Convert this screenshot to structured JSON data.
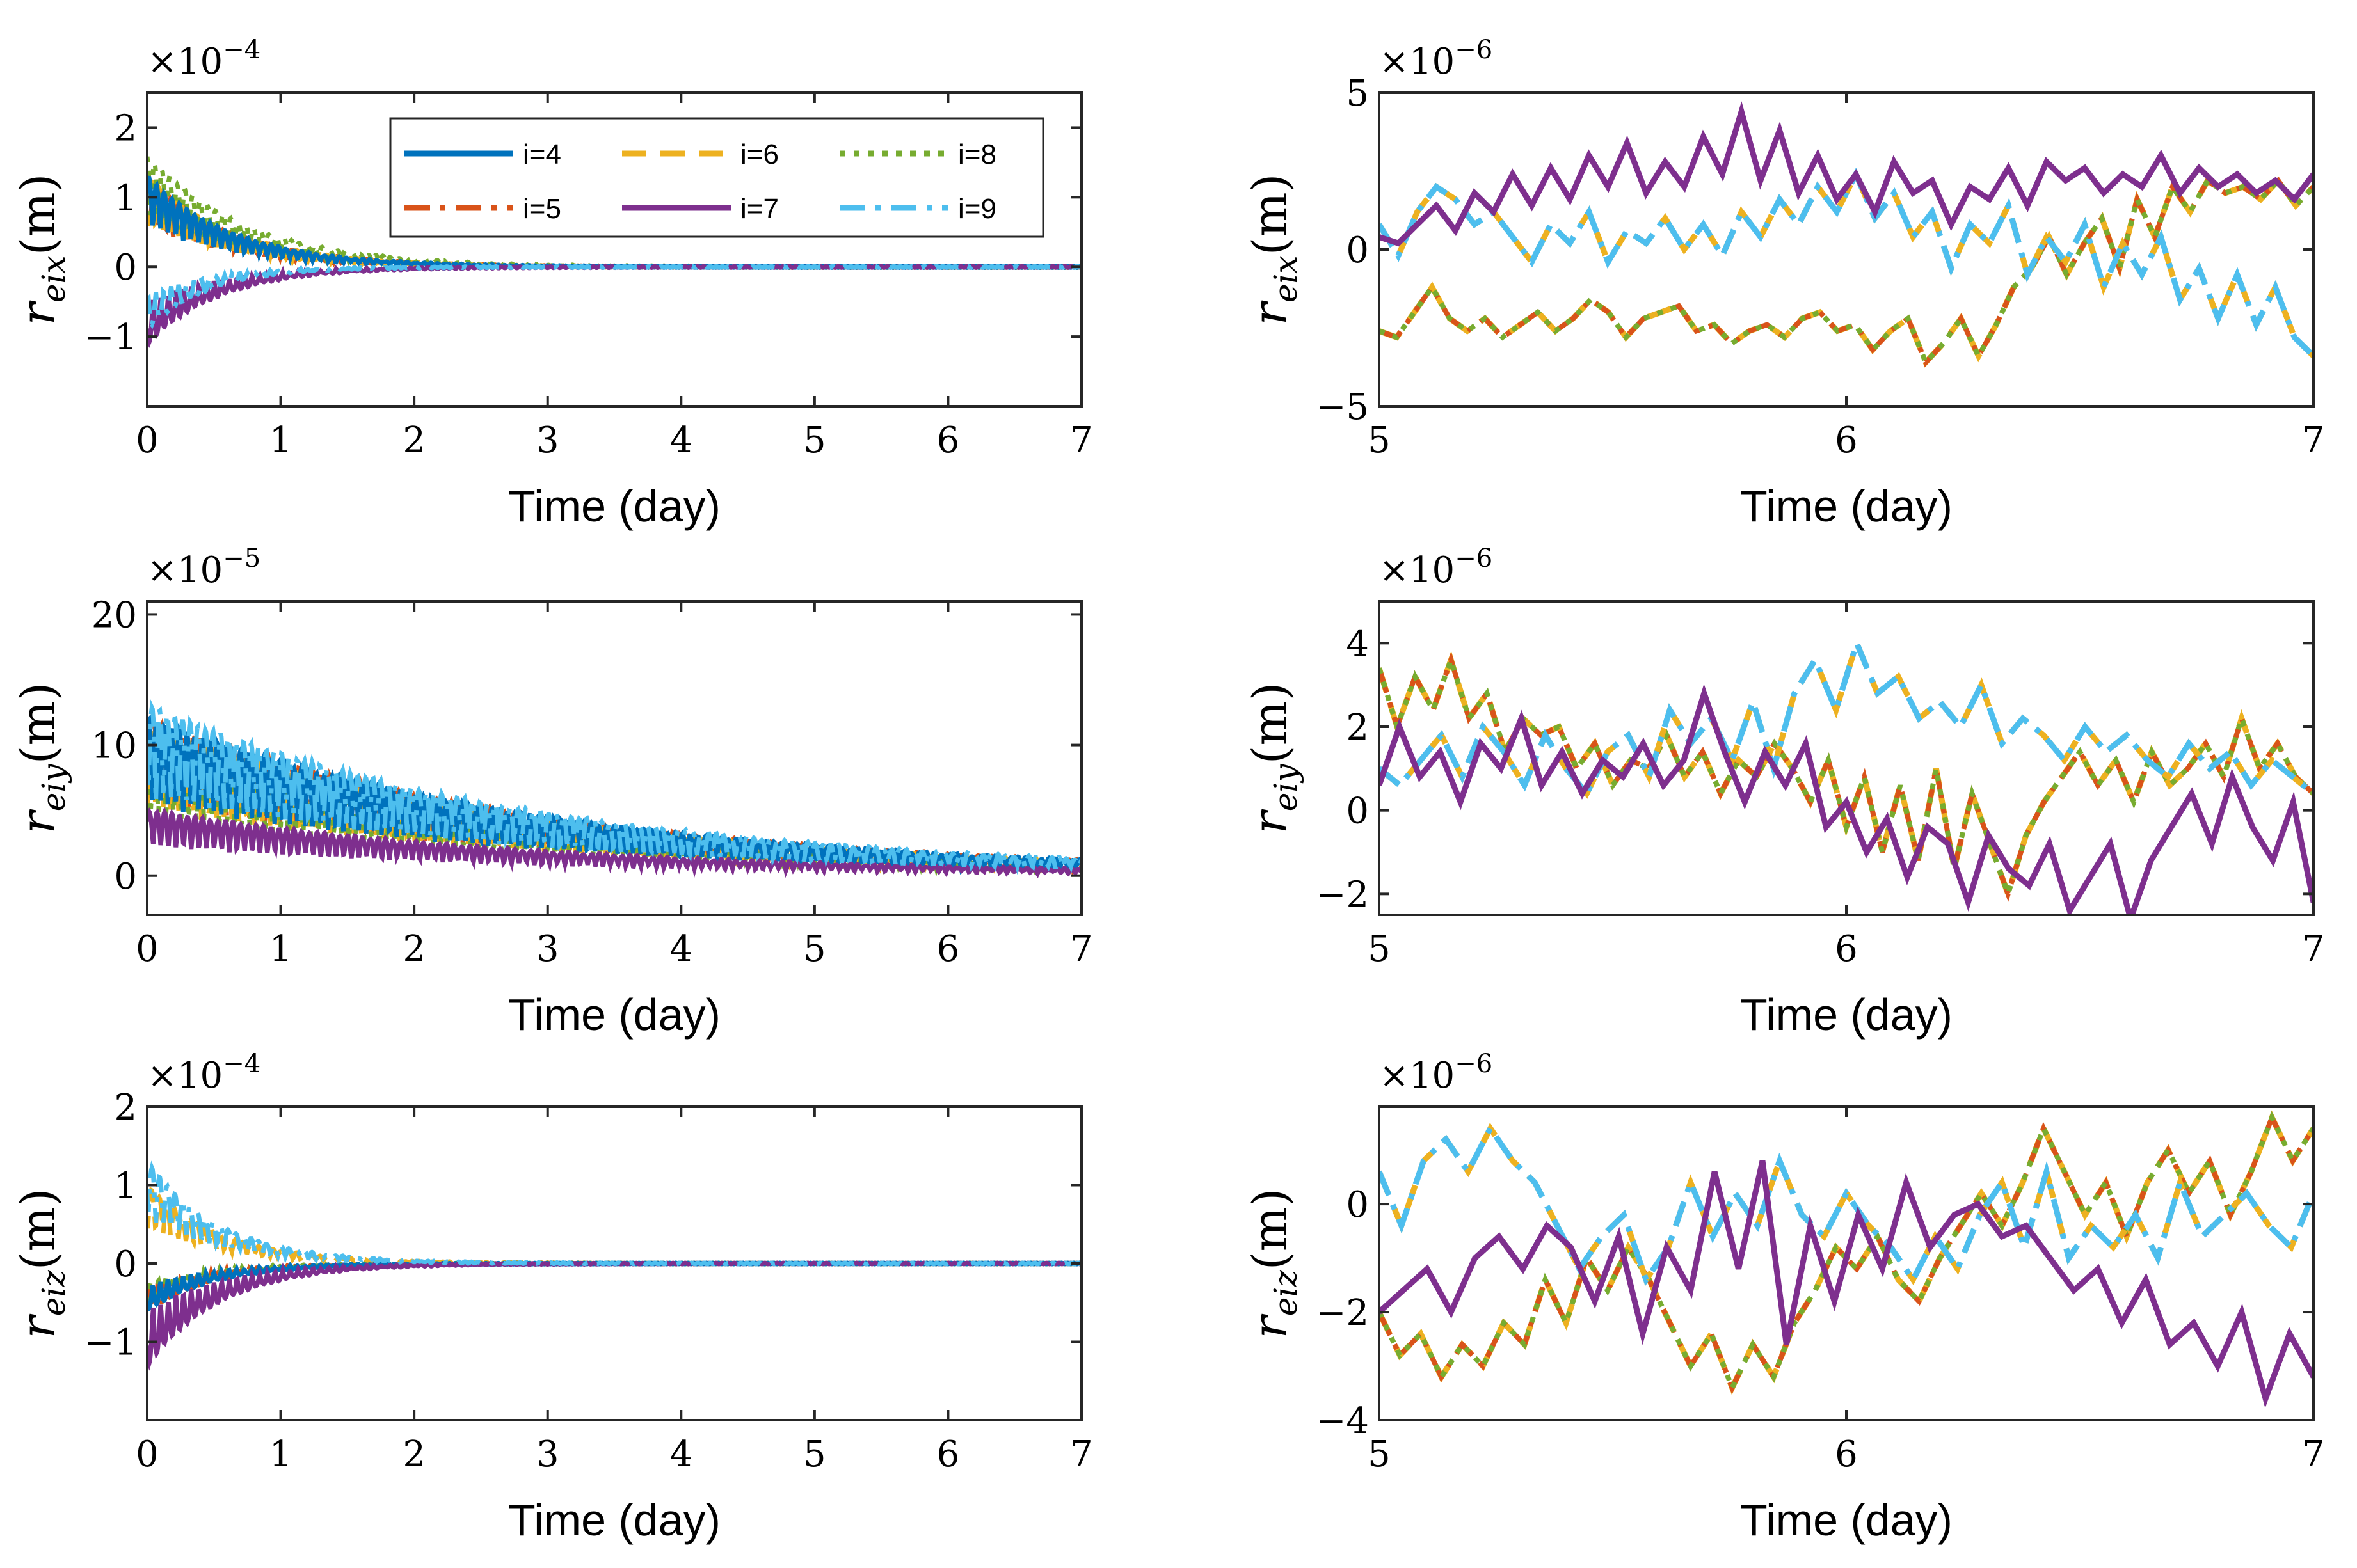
{
  "chart_data": [
    {
      "id": "p1",
      "type": "line",
      "xlabel": "Time (day)",
      "ylabel_main": "r",
      "ylabel_sub": "eix",
      "ylabel_unit": "(m)",
      "multiplier_base": "×10",
      "multiplier_exp": "−4",
      "xlim": [
        0,
        7
      ],
      "ylim": [
        -2,
        2.5
      ],
      "xticks": [
        "0",
        "1",
        "2",
        "3",
        "4",
        "5",
        "6",
        "7"
      ],
      "yticks": [
        -1,
        0,
        1,
        2
      ],
      "ytick_labels": [
        "−1",
        "0",
        "1",
        "2"
      ],
      "kind": "overview",
      "scale": 1,
      "series_params": {
        "4": [
          1.3,
          0.65
        ],
        "5": [
          1.3,
          0.65
        ],
        "6": [
          1.3,
          0.65
        ],
        "8": [
          1.6,
          0.75
        ],
        "7": [
          -1.1,
          0.55
        ],
        "9": [
          -0.9,
          0.45
        ]
      }
    },
    {
      "id": "p2",
      "type": "line",
      "xlabel": "Time (day)",
      "ylabel_main": "r",
      "ylabel_sub": "eix",
      "ylabel_unit": "(m)",
      "multiplier_base": "×10",
      "multiplier_exp": "−6",
      "xlim": [
        5,
        7
      ],
      "ylim": [
        -5,
        5
      ],
      "xticks": [
        "5",
        "6",
        "7"
      ],
      "yticks": [
        -5,
        0,
        5
      ],
      "ytick_labels": [
        "−5",
        "0",
        "5"
      ],
      "kind": "zoom",
      "zoom_set": "x"
    },
    {
      "id": "p3",
      "type": "line",
      "xlabel": "Time (day)",
      "ylabel_main": "r",
      "ylabel_sub": "eiy",
      "ylabel_unit": "(m)",
      "multiplier_base": "×10",
      "multiplier_exp": "−5",
      "xlim": [
        0,
        7
      ],
      "ylim": [
        -3,
        21
      ],
      "xticks": [
        "0",
        "1",
        "2",
        "3",
        "4",
        "5",
        "6",
        "7"
      ],
      "yticks": [
        0,
        10,
        20
      ],
      "ytick_labels": [
        "0",
        "10",
        "20"
      ],
      "kind": "overview",
      "scale": 1,
      "series_params": {
        "4": [
          12,
          3
        ],
        "5": [
          12,
          3
        ],
        "6": [
          11,
          3
        ],
        "8": [
          10,
          3
        ],
        "7": [
          5,
          3
        ],
        "9": [
          13,
          3
        ]
      }
    },
    {
      "id": "p4",
      "type": "line",
      "xlabel": "Time (day)",
      "ylabel_main": "r",
      "ylabel_sub": "eiy",
      "ylabel_unit": "(m)",
      "multiplier_base": "×10",
      "multiplier_exp": "−6",
      "xlim": [
        5,
        7
      ],
      "ylim": [
        -2.5,
        5
      ],
      "xticks": [
        "5",
        "6",
        "7"
      ],
      "yticks": [
        -2,
        0,
        2,
        4
      ],
      "ytick_labels": [
        "−2",
        "0",
        "2",
        "4"
      ],
      "kind": "zoom",
      "zoom_set": "y"
    },
    {
      "id": "p5",
      "type": "line",
      "xlabel": "Time (day)",
      "ylabel_main": "r",
      "ylabel_sub": "eiz",
      "ylabel_unit": "(m)",
      "multiplier_base": "×10",
      "multiplier_exp": "−4",
      "xlim": [
        0,
        7
      ],
      "ylim": [
        -2,
        2
      ],
      "xticks": [
        "0",
        "1",
        "2",
        "3",
        "4",
        "5",
        "6",
        "7"
      ],
      "yticks": [
        -1,
        0,
        1,
        2
      ],
      "ytick_labels": [
        "−1",
        "0",
        "1",
        "2"
      ],
      "kind": "overview",
      "scale": 1,
      "series_params": {
        "4": [
          -0.6,
          0.5
        ],
        "5": [
          -0.6,
          0.5
        ],
        "6": [
          1.0,
          0.55
        ],
        "8": [
          -0.5,
          0.5
        ],
        "7": [
          -1.3,
          0.55
        ],
        "9": [
          1.3,
          0.55
        ]
      }
    },
    {
      "id": "p6",
      "type": "line",
      "xlabel": "Time (day)",
      "ylabel_main": "r",
      "ylabel_sub": "eiz",
      "ylabel_unit": "(m)",
      "multiplier_base": "×10",
      "multiplier_exp": "−6",
      "xlim": [
        5,
        7
      ],
      "ylim": [
        -4,
        1.8
      ],
      "xticks": [
        "5",
        "6",
        "7"
      ],
      "yticks": [
        -4,
        -2,
        0
      ],
      "ytick_labels": [
        "−4",
        "−2",
        "0"
      ],
      "kind": "zoom",
      "zoom_set": "z"
    }
  ],
  "legend": {
    "entries": [
      {
        "key": "4",
        "label": "i=4",
        "color": "#0072BD",
        "dash": "solid"
      },
      {
        "key": "6",
        "label": "i=6",
        "color": "#EDB120",
        "dash": "dashed"
      },
      {
        "key": "8",
        "label": "i=8",
        "color": "#77AC30",
        "dash": "dotted"
      },
      {
        "key": "5",
        "label": "i=5",
        "color": "#D95319",
        "dash": "dashdot"
      },
      {
        "key": "7",
        "label": "i=7",
        "color": "#7E2F8E",
        "dash": "solid"
      },
      {
        "key": "9",
        "label": "i=9",
        "color": "#4DBEEE",
        "dash": "dashdot"
      }
    ],
    "placement": "top-right of first panel"
  },
  "zoom_series": {
    "x": {
      "yellow_green_orange": [
        -2.6,
        -2.8,
        -2.0,
        -1.2,
        -2.2,
        -2.6,
        -2.2,
        -2.8,
        -2.4,
        -2.0,
        -2.6,
        -2.2,
        -1.6,
        -2.0,
        -2.8,
        -2.2,
        -2.0,
        -1.8,
        -2.6,
        -2.4,
        -3.0,
        -2.6,
        -2.4,
        -2.8,
        -2.2,
        -2.0,
        -2.6,
        -2.4,
        -3.2,
        -2.6,
        -2.2,
        -3.6,
        -3.0,
        -2.2,
        -3.4,
        -2.4,
        -1.2,
        -0.6,
        0.4,
        -0.8,
        0.2,
        1.0,
        -0.6,
        1.6,
        0.4,
        2.0,
        1.2,
        2.2,
        1.8,
        2.0,
        1.6,
        2.2,
        1.4,
        2.0
      ],
      "purple": [
        0.4,
        0.2,
        0.8,
        1.4,
        0.6,
        1.8,
        1.2,
        2.4,
        1.4,
        2.6,
        1.6,
        3.0,
        2.0,
        3.4,
        1.8,
        2.8,
        2.0,
        3.6,
        2.4,
        4.4,
        2.2,
        3.8,
        1.8,
        3.0,
        1.6,
        2.4,
        1.2,
        2.8,
        1.8,
        2.2,
        0.8,
        2.0,
        1.6,
        2.6,
        1.4,
        2.8,
        2.2,
        2.6,
        1.8,
        2.4,
        2.0,
        3.0,
        1.8,
        2.6,
        2.0,
        2.4,
        1.8,
        2.2,
        1.6,
        2.4
      ],
      "blue_yellow": [
        0.8,
        -0.2,
        1.2,
        2.0,
        1.6,
        0.8,
        1.2,
        0.4,
        -0.4,
        0.8,
        0.2,
        1.2,
        -0.4,
        0.6,
        0.2,
        1.0,
        0.0,
        0.8,
        -0.2,
        1.2,
        0.4,
        1.6,
        0.8,
        2.0,
        1.2,
        2.4,
        1.0,
        1.8,
        0.4,
        1.2,
        -0.6,
        0.8,
        0.2,
        1.4,
        -0.8,
        0.4,
        -0.4,
        0.8,
        -1.2,
        0.2,
        -0.8,
        0.4,
        -1.6,
        -0.6,
        -2.2,
        -0.8,
        -2.4,
        -1.2,
        -2.8,
        -3.4
      ]
    },
    "y": {
      "yellow_green_orange": [
        3.4,
        2.0,
        3.2,
        2.4,
        3.6,
        2.2,
        2.8,
        1.4,
        2.2,
        1.8,
        2.0,
        1.0,
        1.6,
        0.6,
        1.2,
        1.0,
        1.8,
        0.8,
        1.4,
        0.4,
        1.2,
        0.8,
        1.6,
        1.0,
        0.2,
        1.2,
        -0.4,
        0.8,
        -1.0,
        0.6,
        -1.2,
        1.0,
        -1.4,
        0.4,
        -0.8,
        -2.0,
        -0.6,
        0.2,
        0.8,
        1.4,
        0.6,
        1.2,
        0.2,
        1.4,
        0.6,
        1.0,
        1.6,
        0.8,
        2.2,
        1.0,
        1.6,
        0.8,
        0.4
      ],
      "purple": [
        0.6,
        2.0,
        0.8,
        1.4,
        0.2,
        1.6,
        1.0,
        2.2,
        0.6,
        1.4,
        0.4,
        1.2,
        0.8,
        1.6,
        0.6,
        1.2,
        2.8,
        1.4,
        0.2,
        1.4,
        0.6,
        1.6,
        -0.4,
        0.2,
        -1.0,
        -0.2,
        -1.6,
        -0.4,
        -0.8,
        -2.2,
        -0.6,
        -1.4,
        -1.8,
        -0.8,
        -2.4,
        -1.6,
        -0.8,
        -2.6,
        -1.2,
        -0.4,
        0.4,
        -0.8,
        0.8,
        -0.4,
        -1.2,
        0.2,
        -2.2
      ],
      "blue_yellow": [
        1.0,
        0.6,
        1.2,
        1.8,
        0.8,
        2.0,
        1.4,
        0.6,
        1.8,
        1.0,
        0.4,
        1.4,
        1.8,
        0.8,
        2.4,
        1.6,
        2.2,
        1.2,
        2.6,
        1.0,
        2.8,
        3.6,
        2.4,
        4.0,
        2.8,
        3.2,
        2.2,
        2.6,
        2.0,
        3.0,
        1.6,
        2.2,
        1.8,
        1.2,
        2.0,
        1.4,
        1.8,
        1.2,
        0.8,
        1.6,
        1.0,
        1.4,
        0.6,
        1.2,
        0.8,
        0.4
      ]
    },
    "z": {
      "yellow_green_orange": [
        -2.0,
        -2.8,
        -2.4,
        -3.2,
        -2.6,
        -3.0,
        -2.2,
        -2.6,
        -1.4,
        -2.2,
        -1.0,
        -1.6,
        -0.8,
        -1.4,
        -2.2,
        -3.0,
        -2.4,
        -3.4,
        -2.6,
        -3.2,
        -2.2,
        -1.6,
        -0.8,
        -1.2,
        -0.6,
        -1.4,
        -1.8,
        -1.0,
        -0.4,
        0.2,
        -0.4,
        0.4,
        1.4,
        0.6,
        -0.2,
        0.4,
        -0.6,
        0.4,
        1.0,
        0.2,
        0.8,
        -0.2,
        0.6,
        1.6,
        0.8,
        1.4
      ],
      "purple": [
        -2.0,
        -1.6,
        -1.2,
        -2.0,
        -1.0,
        -0.6,
        -1.2,
        -0.4,
        -0.8,
        -1.8,
        -0.6,
        -2.4,
        -0.8,
        -1.6,
        0.6,
        -1.2,
        0.8,
        -2.6,
        -0.4,
        -1.8,
        -0.2,
        -1.2,
        0.4,
        -0.8,
        -0.2,
        0.0,
        -0.6,
        -0.4,
        -1.0,
        -1.6,
        -1.2,
        -2.2,
        -1.4,
        -2.6,
        -2.2,
        -3.0,
        -2.0,
        -3.6,
        -2.4,
        -3.2
      ],
      "blue_yellow": [
        0.6,
        -0.4,
        0.8,
        1.2,
        0.6,
        1.4,
        0.8,
        0.4,
        -0.4,
        -1.2,
        -0.6,
        -0.2,
        -1.4,
        -0.8,
        0.4,
        -0.6,
        0.2,
        -0.4,
        0.8,
        -0.2,
        -0.6,
        0.2,
        -0.4,
        -0.8,
        -1.4,
        -0.6,
        -1.2,
        -0.2,
        0.4,
        -0.8,
        0.6,
        -1.0,
        -0.4,
        -0.8,
        -0.2,
        -1.0,
        0.4,
        -0.6,
        -0.2,
        0.2,
        -0.4,
        -0.8,
        0.2
      ]
    }
  }
}
